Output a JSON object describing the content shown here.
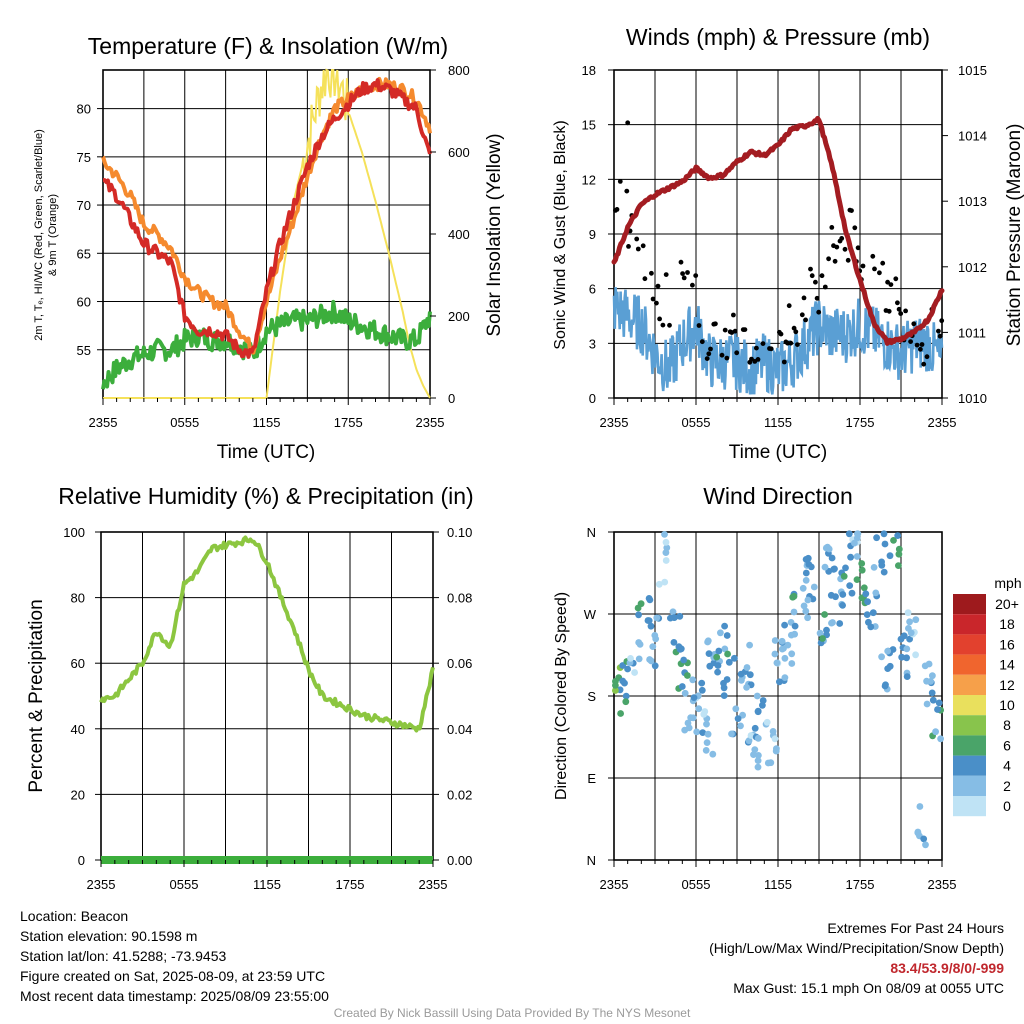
{
  "colors": {
    "t2m": "#d42a26",
    "t9m": "#f58a2e",
    "dewpoint": "#3cae3c",
    "insolation": "#f5e15a",
    "wind": "#5a9fd4",
    "gust": "#000000",
    "pressure": "#a31c21",
    "rh": "#8cc640",
    "precip": "#3cae3c"
  },
  "time_ticks": [
    "2355",
    "0555",
    "1155",
    "1755",
    "2355"
  ],
  "chart_data": [
    {
      "type": "line",
      "title": "Temperature (F) & Insolation (W/m²)",
      "xlabel": "Time (UTC)",
      "ylabel_left": "2m T, Tₑ, HI/WC (Red, Green, Scarlet/Blue) & 9m T (Orange)",
      "ylabel_right": "Solar Insolation (Yellow)",
      "xlim": [
        0,
        24
      ],
      "ylim_left": [
        50,
        84
      ],
      "ylim_right": [
        0,
        800
      ],
      "yticks_left": [
        55,
        60,
        65,
        70,
        75,
        80
      ],
      "yticks_right": [
        0,
        200,
        400,
        600,
        800
      ],
      "series": [
        {
          "key": "t2m",
          "axis": "left",
          "x": [
            0,
            1,
            2,
            3,
            4,
            5,
            6,
            7,
            8,
            9,
            10,
            11,
            12,
            13,
            14,
            15,
            16,
            17,
            18,
            19,
            20,
            21,
            22,
            23,
            24
          ],
          "values": [
            72.5,
            71,
            68.5,
            66,
            65,
            64,
            58.5,
            57,
            57,
            56.5,
            55,
            54.5,
            61,
            66,
            70,
            74,
            77,
            79,
            80.5,
            82,
            82.5,
            82,
            81,
            80,
            75
          ]
        },
        {
          "key": "t9m",
          "axis": "left",
          "x": [
            0,
            1,
            2,
            3,
            4,
            5,
            6,
            7,
            8,
            9,
            10,
            11,
            12,
            13,
            14,
            15,
            16,
            17,
            18,
            19,
            20,
            21,
            22,
            23,
            24
          ],
          "values": [
            74.5,
            73,
            71,
            68,
            67,
            65.5,
            62.5,
            61,
            60,
            59.5,
            57,
            55,
            60,
            64.5,
            68.5,
            73,
            77,
            80,
            81,
            82,
            82.5,
            82.5,
            82,
            81,
            78
          ]
        },
        {
          "key": "dewpoint",
          "axis": "left",
          "x": [
            0,
            1,
            2,
            3,
            4,
            5,
            6,
            7,
            8,
            9,
            10,
            11,
            12,
            13,
            14,
            15,
            16,
            17,
            18,
            19,
            20,
            21,
            22,
            23,
            24
          ],
          "values": [
            51.5,
            53,
            54,
            54.5,
            55,
            55,
            56,
            56.5,
            56,
            56,
            55.5,
            54.5,
            57,
            57.5,
            58,
            58,
            58.5,
            59,
            58,
            57.5,
            57,
            56.5,
            56,
            56,
            58.5
          ]
        },
        {
          "key": "insolation",
          "axis": "right",
          "x": [
            0,
            2,
            4,
            6,
            8,
            9,
            10,
            11,
            12,
            13,
            14,
            15,
            16,
            16.5,
            17,
            17.5,
            18,
            19,
            20,
            21,
            22,
            22.5,
            23,
            23.5,
            24
          ],
          "values": [
            0,
            0,
            0,
            0,
            0,
            0,
            0,
            0,
            0,
            260,
            480,
            620,
            760,
            800,
            790,
            760,
            700,
            600,
            480,
            350,
            210,
            130,
            70,
            30,
            0
          ]
        }
      ]
    },
    {
      "type": "line",
      "title": "Winds (mph) & Pressure (mb)",
      "xlabel": "Time (UTC)",
      "ylabel_left": "Sonic Wind & Gust (Blue, Black)",
      "ylabel_right": "Station Pressure (Maroon)",
      "xlim": [
        0,
        24
      ],
      "ylim_left": [
        0,
        18
      ],
      "ylim_right": [
        1010,
        1015
      ],
      "yticks_left": [
        0,
        3,
        6,
        9,
        12,
        15,
        18
      ],
      "yticks_right": [
        1010,
        1011,
        1012,
        1013,
        1014,
        1015
      ],
      "series": [
        {
          "key": "wind",
          "axis": "left",
          "x": [
            0,
            1,
            2,
            3,
            4,
            5,
            6,
            7,
            8,
            9,
            10,
            11,
            12,
            13,
            14,
            15,
            16,
            17,
            18,
            19,
            20,
            21,
            22,
            23,
            24
          ],
          "values": [
            5,
            4.5,
            4,
            2.5,
            1.5,
            3,
            4,
            2,
            2,
            2,
            1.5,
            2,
            1.5,
            2,
            3,
            4,
            3.5,
            3.5,
            4,
            3.5,
            3,
            2.5,
            3,
            3,
            2
          ]
        },
        {
          "key": "gust",
          "axis": "left",
          "x": [
            0,
            1,
            2,
            3,
            4,
            5,
            6,
            7,
            8,
            9,
            10,
            11,
            12,
            13,
            14,
            15,
            16,
            17,
            18,
            19,
            20,
            21,
            22,
            23,
            24
          ],
          "values": [
            11.5,
            10,
            9,
            6,
            5,
            6,
            5.5,
            3.5,
            3,
            3,
            2.5,
            3,
            3,
            3.5,
            5.5,
            6,
            8,
            9,
            8,
            7,
            6,
            5,
            4,
            3,
            4
          ]
        },
        {
          "key": "pressure",
          "axis": "right",
          "x": [
            0,
            1,
            2,
            3,
            4,
            5,
            6,
            7,
            8,
            9,
            10,
            11,
            12,
            13,
            14,
            15,
            16,
            17,
            18,
            19,
            20,
            21,
            22,
            23,
            24
          ],
          "values": [
            1012.05,
            1012.6,
            1012.95,
            1013.1,
            1013.2,
            1013.3,
            1013.5,
            1013.35,
            1013.4,
            1013.6,
            1013.75,
            1013.7,
            1013.85,
            1014.1,
            1014.15,
            1014.25,
            1013.5,
            1012.5,
            1011.8,
            1011.15,
            1010.85,
            1010.9,
            1011.0,
            1011.2,
            1011.65
          ]
        }
      ]
    },
    {
      "type": "line",
      "title": "Relative Humidity (%) & Precipitation (in)",
      "ylabel_left": "Percent & Precipitation",
      "xlim": [
        0,
        24
      ],
      "ylim_left": [
        0,
        100
      ],
      "ylim_right": [
        0,
        0.1
      ],
      "yticks_left": [
        0,
        20,
        40,
        60,
        80,
        100
      ],
      "yticks_right": [
        "0.00",
        "0.02",
        "0.04",
        "0.06",
        "0.08",
        "0.10"
      ],
      "series": [
        {
          "key": "rh",
          "axis": "left",
          "x": [
            0,
            1,
            2,
            3,
            4,
            5,
            6,
            7,
            8,
            9,
            10,
            11,
            12,
            13,
            14,
            15,
            16,
            17,
            18,
            19,
            20,
            21,
            22,
            23,
            24
          ],
          "values": [
            49,
            50,
            55,
            60,
            70,
            65,
            84,
            88,
            95,
            96,
            97,
            98,
            91,
            80,
            70,
            58,
            50,
            48,
            46,
            44,
            43,
            42,
            41,
            40,
            58
          ]
        },
        {
          "key": "precip",
          "axis": "right",
          "x": [
            0,
            24
          ],
          "values": [
            0,
            0
          ]
        }
      ]
    },
    {
      "type": "scatter",
      "title": "Wind Direction",
      "ylabel_left": "Direction (Colored By Speed)",
      "xlim": [
        0,
        24
      ],
      "yticks_left": [
        "N",
        "W",
        "S",
        "E",
        "N"
      ],
      "legend": {
        "title": "mph",
        "labels": [
          "20+",
          "18",
          "16",
          "14",
          "12",
          "10",
          "8",
          "6",
          "4",
          "2",
          "0"
        ],
        "colors": [
          "#9e1a1d",
          "#c9262b",
          "#e2412e",
          "#f0652e",
          "#f6a04a",
          "#e9e05d",
          "#88c44c",
          "#4aa469",
          "#4a8fc8",
          "#86bde5",
          "#bfe3f5"
        ]
      },
      "direction_min_deg": 0,
      "direction_max_deg": 360,
      "cluster_x": [
        0.2,
        1.0,
        1.5,
        2.2,
        3.0,
        3.6,
        4.4,
        5.0,
        5.6,
        6.1,
        6.8,
        7.3,
        7.9,
        8.4,
        9.0,
        9.6,
        10.2,
        10.8,
        11.5,
        12.1,
        12.7,
        13.3,
        13.9,
        14.5,
        15.2,
        15.8,
        16.3,
        17.0,
        17.6,
        18.2,
        18.8,
        19.4,
        20.0,
        20.6,
        21.2,
        21.8,
        22.4,
        23.1,
        23.7
      ],
      "cluster_dir": [
        185,
        200,
        220,
        260,
        240,
        330,
        250,
        215,
        160,
        175,
        140,
        215,
        245,
        200,
        150,
        210,
        120,
        160,
        130,
        215,
        240,
        265,
        290,
        310,
        250,
        330,
        280,
        305,
        350,
        300,
        270,
        340,
        210,
        345,
        220,
        250,
        35,
        195,
        160
      ],
      "cluster_speed": [
        6,
        4,
        2,
        5,
        3,
        1,
        4,
        4,
        2,
        3,
        2,
        3,
        4,
        4,
        2,
        3,
        2,
        3,
        1,
        2,
        3,
        4,
        2,
        3,
        4,
        3,
        3,
        4,
        2,
        5,
        4,
        3,
        3,
        6,
        4,
        2,
        2,
        3,
        4
      ]
    }
  ],
  "footer": {
    "location": "Location: Beacon",
    "elevation": "Station elevation: 90.1598 m",
    "latlon": "Station lat/lon: 41.5288; -73.9453",
    "created": "Figure created on Sat, 2025-08-09, at 23:59 UTC",
    "recent": "Most recent data timestamp: 2025/08/09 23:55:00",
    "extremes_title": "Extremes For Past 24 Hours",
    "extremes_desc": "(High/Low/Max Wind/Precipitation/Snow Depth)",
    "extremes_values": "83.4/53.9/8/0/-999",
    "max_gust": "Max Gust: 15.1 mph On 08/09 at 0055 UTC",
    "credit": "Created By Nick Bassill Using Data Provided By The NYS Mesonet"
  }
}
